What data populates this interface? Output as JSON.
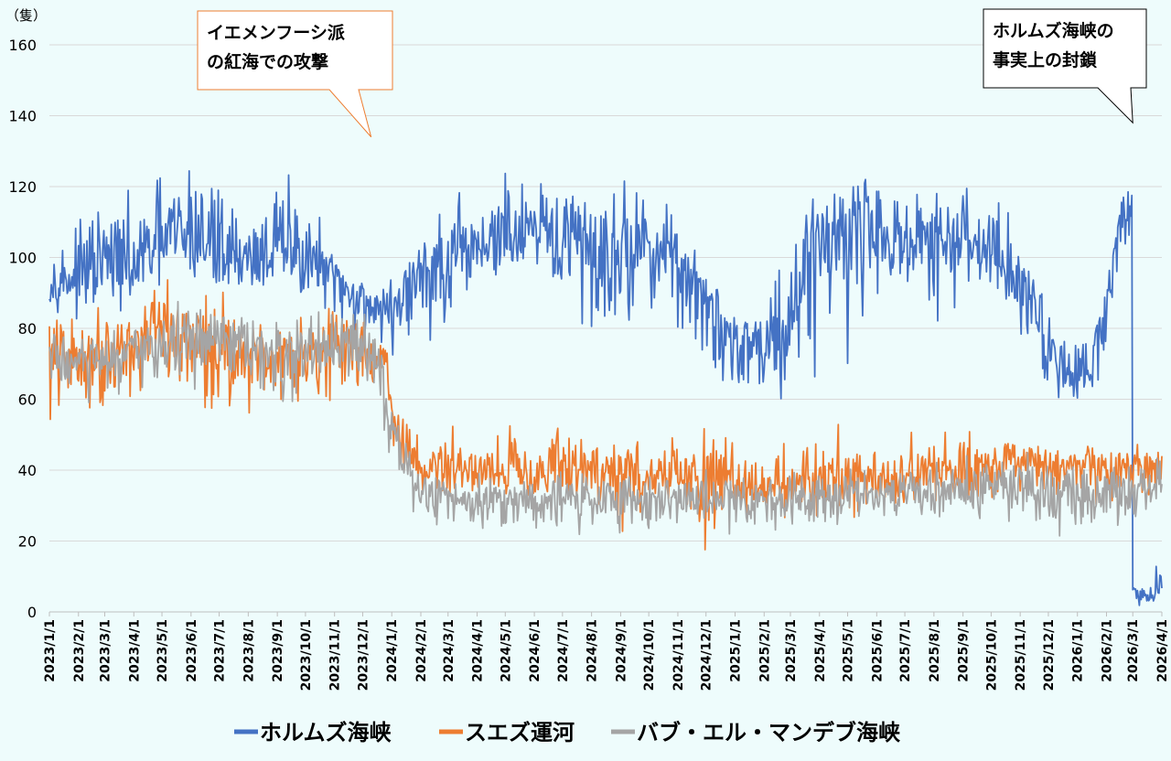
{
  "chart_data": {
    "type": "line",
    "unit_label": "（隻）",
    "ylim": [
      0,
      160
    ],
    "yticks": [
      0,
      20,
      40,
      60,
      80,
      100,
      120,
      140,
      160
    ],
    "grid": true,
    "legend_position": "bottom",
    "xtick_labels": [
      "2023/1/1",
      "2023/2/1",
      "2023/3/1",
      "2023/4/1",
      "2023/5/1",
      "2023/6/1",
      "2023/7/1",
      "2023/8/1",
      "2023/9/1",
      "2023/10/1",
      "2023/11/1",
      "2023/12/1",
      "2024/1/1",
      "2024/2/1",
      "2024/3/1",
      "2024/4/1",
      "2024/5/1",
      "2024/6/1",
      "2024/7/1",
      "2024/8/1",
      "2024/9/1",
      "2024/10/1",
      "2024/11/1",
      "2024/12/1",
      "2025/1/1",
      "2025/2/1",
      "2025/3/1",
      "2025/4/1",
      "2025/5/1",
      "2025/6/1",
      "2025/7/1",
      "2025/8/1",
      "2025/9/1",
      "2025/10/1",
      "2025/11/1",
      "2025/12/1",
      "2026/1/1",
      "2026/2/1",
      "2026/3/1",
      "2026/4/1"
    ],
    "series": [
      {
        "name": "ホルムズ海峡",
        "color": "#4472c4",
        "x": [
          "2023/1/1",
          "2023/2/1",
          "2023/3/1",
          "2023/4/1",
          "2023/5/1",
          "2023/6/1",
          "2023/7/1",
          "2023/8/1",
          "2023/9/1",
          "2023/10/1",
          "2023/11/1",
          "2023/12/1",
          "2024/1/1",
          "2024/2/1",
          "2024/3/1",
          "2024/4/1",
          "2024/5/1",
          "2024/6/1",
          "2024/7/1",
          "2024/8/1",
          "2024/9/1",
          "2024/10/1",
          "2024/11/1",
          "2024/12/1",
          "2025/1/1",
          "2025/2/1",
          "2025/3/1",
          "2025/4/1",
          "2025/5/1",
          "2025/6/1",
          "2025/7/1",
          "2025/8/1",
          "2025/9/1",
          "2025/10/1",
          "2025/11/1",
          "2025/12/1",
          "2026/1/1",
          "2026/2/1",
          "2026/2/15",
          "2026/2/28",
          "2026/3/1",
          "2026/3/15",
          "2026/4/1"
        ],
        "values": [
          92,
          95,
          98,
          96,
          104,
          106,
          104,
          100,
          102,
          100,
          94,
          88,
          86,
          96,
          94,
          104,
          106,
          104,
          104,
          100,
          103,
          104,
          100,
          86,
          76,
          74,
          84,
          108,
          110,
          108,
          104,
          102,
          104,
          103,
          96,
          76,
          66,
          82,
          112,
          115,
          6,
          4,
          7
        ],
        "highs": [
          106,
          112,
          122,
          120,
          129,
          138,
          128,
          112,
          130,
          130,
          102,
          96,
          96,
          110,
          123,
          125,
          128,
          130,
          131,
          132,
          128,
          120,
          118,
          100,
          92,
          92,
          123,
          127,
          128,
          131,
          126,
          126,
          126,
          126,
          113,
          90,
          85,
          100,
          120,
          129,
          9,
          9,
          17
        ],
        "lows": [
          86,
          80,
          80,
          84,
          88,
          86,
          80,
          88,
          84,
          84,
          72,
          74,
          64,
          72,
          72,
          80,
          88,
          84,
          86,
          72,
          72,
          80,
          74,
          58,
          58,
          62,
          45,
          64,
          66,
          84,
          82,
          80,
          80,
          80,
          66,
          52,
          54,
          66,
          90,
          95,
          1,
          0,
          3
        ]
      },
      {
        "name": "スエズ運河",
        "color": "#ed7d31",
        "x": [
          "2023/1/1",
          "2023/2/1",
          "2023/3/1",
          "2023/4/1",
          "2023/5/1",
          "2023/6/1",
          "2023/7/1",
          "2023/8/1",
          "2023/9/1",
          "2023/10/1",
          "2023/11/1",
          "2023/12/1",
          "2023/12/25",
          "2024/1/1",
          "2024/1/15",
          "2024/2/1",
          "2024/3/1",
          "2024/4/1",
          "2024/5/1",
          "2024/6/1",
          "2024/7/1",
          "2024/8/1",
          "2024/9/1",
          "2024/10/1",
          "2024/11/1",
          "2024/12/1",
          "2025/1/1",
          "2025/2/1",
          "2025/3/1",
          "2025/4/1",
          "2025/5/1",
          "2025/6/1",
          "2025/7/1",
          "2025/8/1",
          "2025/9/1",
          "2025/10/1",
          "2025/11/1",
          "2025/12/1",
          "2026/1/1",
          "2026/2/1",
          "2026/3/1",
          "2026/4/1"
        ],
        "values": [
          72,
          72,
          74,
          76,
          80,
          76,
          74,
          72,
          72,
          74,
          74,
          76,
          70,
          56,
          46,
          40,
          40,
          40,
          40,
          40,
          40,
          40,
          38,
          38,
          38,
          38,
          36,
          36,
          36,
          38,
          38,
          38,
          38,
          40,
          40,
          42,
          42,
          40,
          40,
          40,
          40,
          40
        ],
        "highs": [
          90,
          86,
          92,
          88,
          96,
          92,
          98,
          90,
          86,
          92,
          90,
          88,
          80,
          66,
          58,
          52,
          55,
          55,
          59,
          54,
          56,
          58,
          54,
          52,
          52,
          56,
          50,
          52,
          50,
          52,
          59,
          56,
          52,
          52,
          60,
          52,
          52,
          50,
          50,
          50,
          50,
          50
        ],
        "lows": [
          44,
          50,
          52,
          56,
          60,
          50,
          52,
          54,
          54,
          58,
          56,
          60,
          56,
          42,
          34,
          30,
          30,
          30,
          30,
          28,
          28,
          26,
          18,
          28,
          28,
          10,
          26,
          24,
          24,
          24,
          17,
          26,
          24,
          24,
          28,
          28,
          30,
          28,
          26,
          26,
          26,
          26
        ]
      },
      {
        "name": "バブ・エル・マンデブ海峡",
        "color": "#a5a5a5",
        "x": [
          "2023/1/1",
          "2023/2/1",
          "2023/3/1",
          "2023/4/1",
          "2023/5/1",
          "2023/6/1",
          "2023/7/1",
          "2023/8/1",
          "2023/9/1",
          "2023/10/1",
          "2023/11/1",
          "2023/12/1",
          "2023/12/20",
          "2024/1/1",
          "2024/1/15",
          "2024/2/1",
          "2024/3/1",
          "2024/4/1",
          "2024/5/1",
          "2024/6/1",
          "2024/7/1",
          "2024/8/1",
          "2024/9/1",
          "2024/10/1",
          "2024/11/1",
          "2024/12/1",
          "2025/1/1",
          "2025/2/1",
          "2025/3/1",
          "2025/4/1",
          "2025/5/1",
          "2025/6/1",
          "2025/7/1",
          "2025/8/1",
          "2025/9/1",
          "2025/10/1",
          "2025/11/1",
          "2025/12/1",
          "2026/1/1",
          "2026/2/1",
          "2026/3/1",
          "2026/4/1"
        ],
        "values": [
          72,
          70,
          70,
          72,
          76,
          76,
          76,
          74,
          72,
          74,
          74,
          76,
          72,
          52,
          40,
          34,
          32,
          32,
          32,
          32,
          32,
          32,
          32,
          32,
          32,
          32,
          32,
          32,
          32,
          34,
          34,
          34,
          34,
          34,
          34,
          36,
          36,
          34,
          32,
          34,
          36,
          34
        ],
        "highs": [
          84,
          84,
          82,
          84,
          88,
          92,
          90,
          88,
          84,
          88,
          86,
          88,
          80,
          60,
          50,
          44,
          42,
          42,
          42,
          42,
          42,
          42,
          42,
          42,
          42,
          42,
          42,
          42,
          42,
          44,
          44,
          44,
          44,
          44,
          46,
          46,
          48,
          46,
          44,
          46,
          46,
          44
        ],
        "lows": [
          60,
          56,
          52,
          58,
          62,
          60,
          62,
          56,
          46,
          58,
          60,
          62,
          56,
          36,
          28,
          24,
          20,
          22,
          18,
          20,
          17,
          20,
          20,
          20,
          20,
          20,
          20,
          20,
          20,
          22,
          22,
          24,
          24,
          18,
          24,
          24,
          22,
          12,
          20,
          20,
          20,
          26
        ]
      }
    ],
    "annotations": [
      {
        "lines": [
          "イエメンフーシ派",
          "の紅海での攻撃"
        ],
        "target_date": "2023/12/10",
        "target_value": 134,
        "border_color": "#ed7d31"
      },
      {
        "lines": [
          "ホルムズ海峡の",
          "事実上の封鎖"
        ],
        "target_date": "2026/3/1",
        "target_value": 138,
        "border_color": "#000000"
      }
    ]
  }
}
